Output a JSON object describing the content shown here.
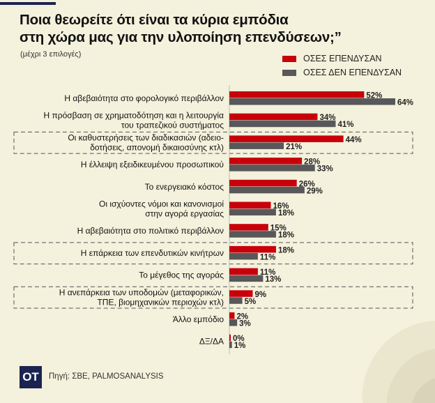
{
  "chart_data": {
    "type": "bar",
    "orientation": "horizontal",
    "title": "Ποια θεωρείτε ότι είναι τα κύρια εμπόδια στη χώρα μας για την υλοποίηση επενδύσεων;”",
    "title_lines": [
      "Ποια θεωρείτε ότι είναι τα κύρια εμπόδια",
      "στη χώρα μας για την υλοποίηση επενδύσεων;”"
    ],
    "subtitle": "(μέχρι 3 επιλογές)",
    "legend_position": "top-right",
    "xlim": [
      0,
      64
    ],
    "grid": false,
    "categories": [
      [
        "Η αβεβαιότητα στο φορολογικό περιβάλλον"
      ],
      [
        "Η πρόσβαση σε χρηματοδότηση και η λειτουργία",
        "του τραπεζικού συστήματος"
      ],
      [
        "Οι καθυστερήσεις των διαδικασιών (αδειο-",
        "δοτήσεις, απονομή δικαιοσύνης κτλ)"
      ],
      [
        "Η έλλειψη εξειδικευμένου προσωπικού"
      ],
      [
        "Το ενεργειακό κόστος"
      ],
      [
        "Οι ισχύοντες νόμοι και κανονισμοί",
        "στην αγορά εργασίας"
      ],
      [
        "Η αβεβαιότητα στο πολιτικό περιβάλλον"
      ],
      [
        "Η επάρκεια των επενδυτικών κινήτρων"
      ],
      [
        "Το μέγεθος της αγοράς"
      ],
      [
        "Η ανεπάρκεια των υποδομών (μεταφορικών,",
        "ΤΠΕ, βιομηχανικών περιοχών κτλ)"
      ],
      [
        "Άλλο εμπόδιο"
      ],
      [
        "ΔΞ/ΔΑ"
      ]
    ],
    "highlighted_categories": [
      2,
      7,
      9
    ],
    "series": [
      {
        "name": "ΟΣΕΣ ΕΠΕΝΔΥΣΑΝ",
        "color": "#c8000a",
        "values": [
          52,
          34,
          44,
          28,
          26,
          16,
          15,
          18,
          11,
          9,
          2,
          0
        ]
      },
      {
        "name": "ΟΣΕΣ ΔΕΝ ΕΠΕΝΔΥΣΑΝ",
        "color": "#58585a",
        "values": [
          64,
          41,
          21,
          33,
          29,
          18,
          18,
          11,
          13,
          5,
          3,
          1
        ]
      }
    ],
    "value_suffix": "%"
  },
  "footer": {
    "logo": "OT",
    "source": "Πηγή: ΣΒΕ, PALMOSANALYSIS"
  }
}
